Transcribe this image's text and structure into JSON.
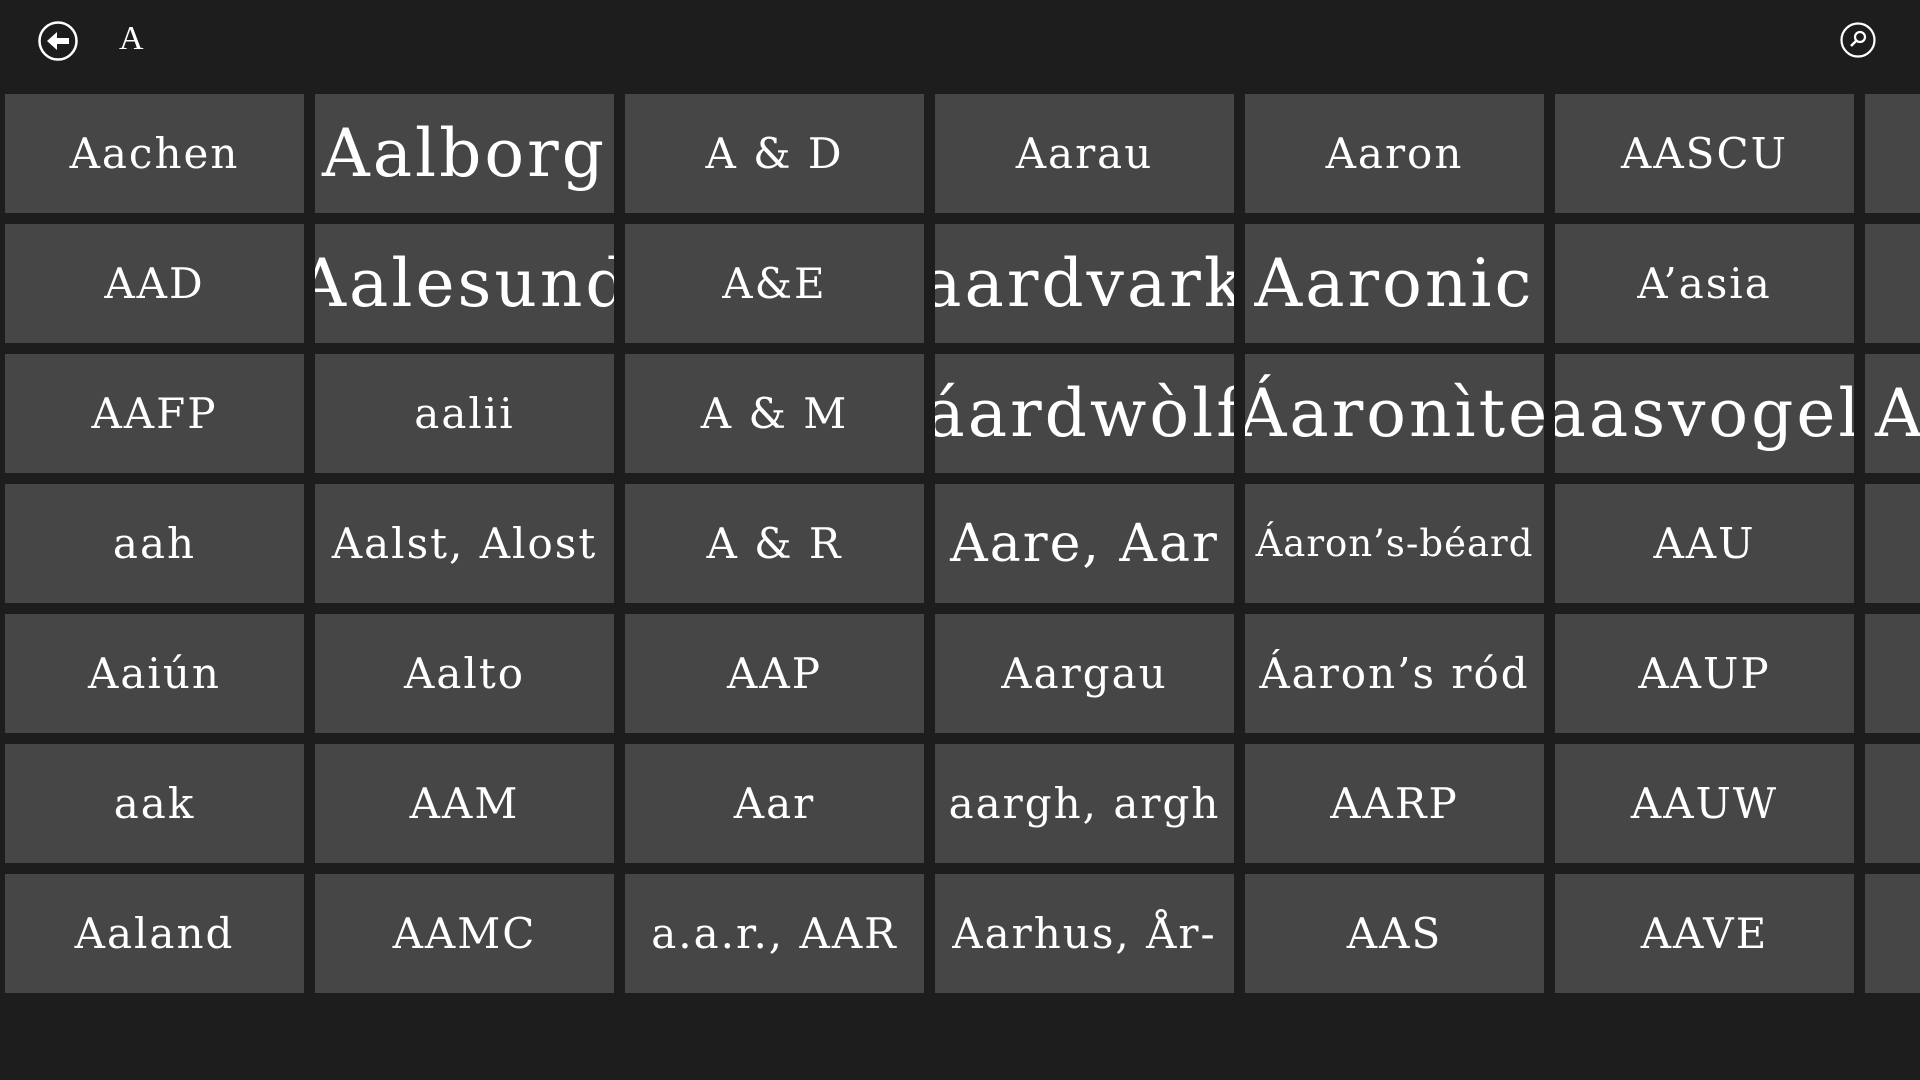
{
  "header": {
    "title": "A",
    "back_icon": "back-arrow-circle-icon",
    "search_icon": "search-circle-icon"
  },
  "colors": {
    "background": "#1d1d1d",
    "tile": "#464646",
    "text": "#ffffff"
  },
  "rows": [
    [
      {
        "label": "Aachen"
      },
      {
        "label": "Aalborg",
        "emphasis": "large"
      },
      {
        "label": "A & D"
      },
      {
        "label": "Aarau"
      },
      {
        "label": "Aaron"
      },
      {
        "label": "AASCU"
      },
      {
        "label": ""
      }
    ],
    [
      {
        "label": "AAD"
      },
      {
        "label": "Aalesund",
        "emphasis": "large"
      },
      {
        "label": "A&E"
      },
      {
        "label": "aardvark",
        "emphasis": "large"
      },
      {
        "label": "Aaronic",
        "emphasis": "large"
      },
      {
        "label": "A’asia"
      },
      {
        "label": ""
      }
    ],
    [
      {
        "label": "AAFP"
      },
      {
        "label": "aalii"
      },
      {
        "label": "A & M"
      },
      {
        "label": "áardwòlf",
        "emphasis": "large"
      },
      {
        "label": "Áaronìte",
        "emphasis": "large"
      },
      {
        "label": "aasvogel",
        "emphasis": "large"
      },
      {
        "label": "A",
        "emphasis": "large"
      }
    ],
    [
      {
        "label": "aah"
      },
      {
        "label": "Aalst, Alost"
      },
      {
        "label": "A & R"
      },
      {
        "label": "Aare, Aar",
        "emphasis": "medium"
      },
      {
        "label": "Áaron’s-béard",
        "emphasis": "small"
      },
      {
        "label": "AAU"
      },
      {
        "label": ""
      }
    ],
    [
      {
        "label": "Aaiún"
      },
      {
        "label": "Aalto"
      },
      {
        "label": "AAP"
      },
      {
        "label": "Aargau"
      },
      {
        "label": "Áaron’s ród"
      },
      {
        "label": "AAUP"
      },
      {
        "label": ""
      }
    ],
    [
      {
        "label": "aak"
      },
      {
        "label": "AAM"
      },
      {
        "label": "Aar"
      },
      {
        "label": "aargh, argh"
      },
      {
        "label": "AARP"
      },
      {
        "label": "AAUW"
      },
      {
        "label": ""
      }
    ],
    [
      {
        "label": "Aaland"
      },
      {
        "label": "AAMC"
      },
      {
        "label": "a.a.r., AAR"
      },
      {
        "label": "Aarhus, År-"
      },
      {
        "label": "AAS"
      },
      {
        "label": "AAVE"
      },
      {
        "label": ""
      }
    ]
  ]
}
